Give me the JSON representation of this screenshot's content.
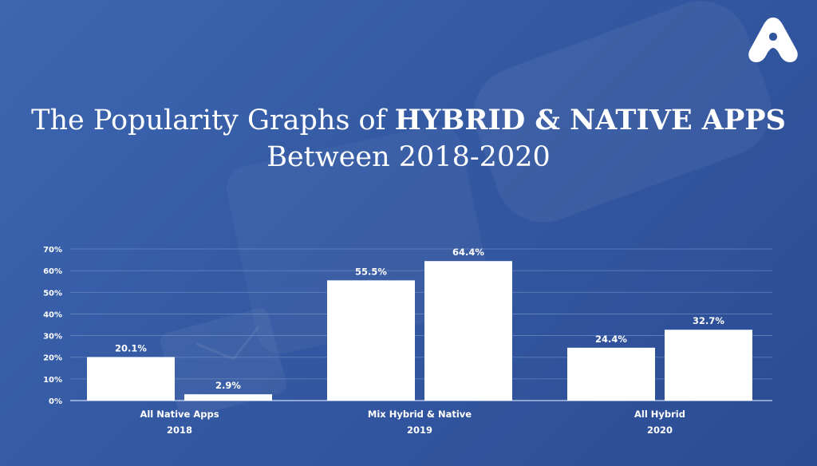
{
  "title": {
    "line1_prefix": "The Popularity Graphs of",
    "line1_bold": "HYBRID & NATIVE APPS",
    "line2": "Between 2018-2020"
  },
  "logo": {
    "icon": "brand-a-logo-icon"
  },
  "colors": {
    "background": "#3459a3",
    "bar": "#ffffff",
    "grid": "#7d97c9"
  },
  "chart_data": {
    "type": "bar",
    "categories": [
      "All Native Apps",
      "Mix Hybrid & Native",
      "All Hybrid"
    ],
    "category_years": [
      "2018",
      "2019",
      "2020"
    ],
    "series": [
      {
        "values": [
          20.1,
          55.5,
          24.4
        ]
      },
      {
        "values": [
          2.9,
          64.4,
          32.7
        ]
      }
    ],
    "value_labels": [
      [
        "20.1%",
        "2.9%"
      ],
      [
        "55.5%",
        "64.4%"
      ],
      [
        "24.4%",
        "32.7%"
      ]
    ],
    "yticks": [
      "0%",
      "10%",
      "20%",
      "30%",
      "40%",
      "50%",
      "60%",
      "70%"
    ],
    "ylim": [
      0,
      70
    ],
    "grid": true
  }
}
